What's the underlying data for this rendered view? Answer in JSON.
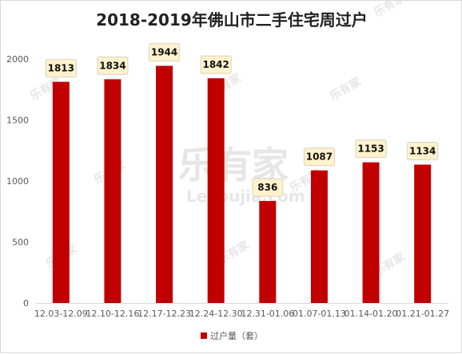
{
  "chart_data": {
    "type": "bar",
    "title": "2018-2019年佛山市二手住宅周过户",
    "categories": [
      "12.03-12.09",
      "12.10-12.16",
      "12.17-12.23",
      "12.24-12.30",
      "12.31-01.06",
      "01.07-01.13",
      "01.14-01.20",
      "01.21-01.27"
    ],
    "series": [
      {
        "name": "过户量（套）",
        "values": [
          1813,
          1834,
          1944,
          1842,
          836,
          1087,
          1153,
          1134
        ]
      }
    ],
    "ylim": [
      0,
      2000
    ],
    "yticks": [
      0,
      500,
      1000,
      1500,
      2000
    ],
    "grid": false,
    "legend_position": "bottom",
    "bar_color": "#c00000",
    "label_bg_color": "#fff2cc",
    "label_border_color": "#d9d2c0"
  },
  "watermark": {
    "brand": "乐有家",
    "domain": "Leyoujia.com"
  }
}
